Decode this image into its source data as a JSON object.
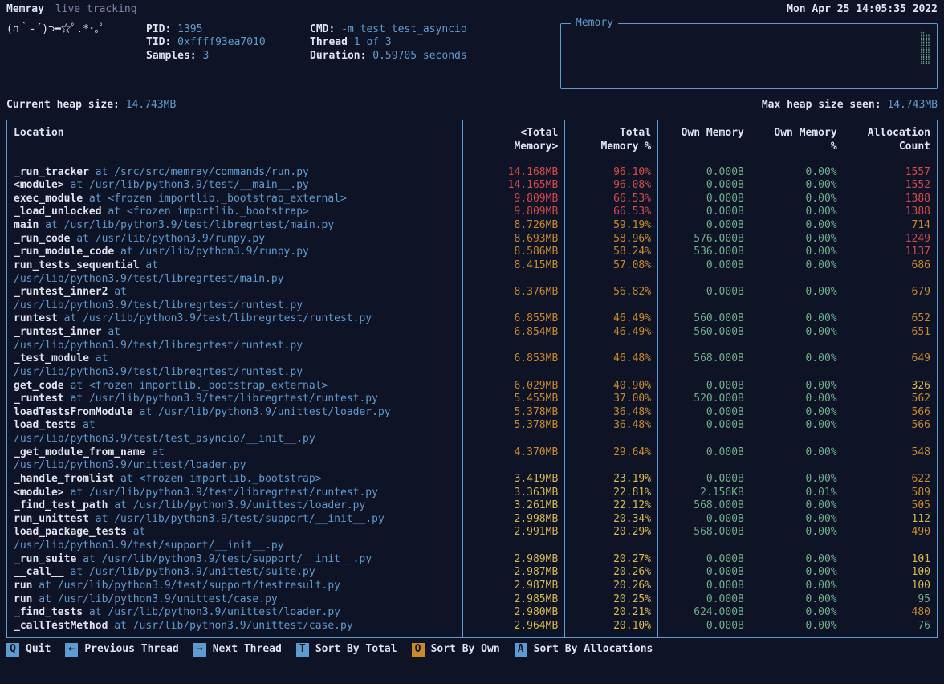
{
  "brand": "Memray",
  "subtitle": "live tracking",
  "timestamp": "Mon Apr 25 14:05:35 2022",
  "emoticon": "(∩｀-´)⊃━☆ﾟ.*･｡ﾟ",
  "process": {
    "pid_label": "PID:",
    "pid": "1395",
    "tid_label": "TID:",
    "tid": "0xffff93ea7010",
    "samples_label": "Samples:",
    "samples": "3",
    "cmd_label": "CMD:",
    "cmd": "-m test test_asyncio",
    "thread_label": "Thread",
    "thread": "1 of 3",
    "duration_label": "Duration:",
    "duration": "0.59705 seconds"
  },
  "memory_box_title": "Memory",
  "memory_spark": "⣦⣀\n⣿⣿\n⣿⣿\n⣿⣿\n⣿⣿",
  "heap": {
    "current_label": "Current heap size:",
    "current_value": "14.743MB",
    "max_label": "Max heap size seen:",
    "max_value": "14.743MB"
  },
  "columns": {
    "location": "Location",
    "total_mem": "<Total\nMemory>",
    "total_pct": "Total\nMemory %",
    "own_mem": "Own Memory",
    "own_pct": "Own Memory\n%",
    "alloc": "Allocation\nCount"
  },
  "colors": {
    "red": "#d34b4e",
    "orange": "#c98b2a",
    "yellow": "#d6b94f",
    "green": "#6fae8d",
    "background": "#0f1326",
    "border": "#5e9bd0",
    "text": "#e0e2ef"
  },
  "rows": [
    {
      "fn": "_run_tracker",
      "path": "/src/src/memray/commands/run.py",
      "tm": "14.168MB",
      "tp": "96.10%",
      "om": "0.000B",
      "op": "0.00%",
      "ac": "1557",
      "c_tm": "red",
      "c_tp": "red",
      "c_om": "green",
      "c_op": "green",
      "c_ac": "red"
    },
    {
      "fn": "<module>",
      "path": "/usr/lib/python3.9/test/__main__.py",
      "tm": "14.165MB",
      "tp": "96.08%",
      "om": "0.000B",
      "op": "0.00%",
      "ac": "1552",
      "c_tm": "red",
      "c_tp": "red",
      "c_om": "green",
      "c_op": "green",
      "c_ac": "red"
    },
    {
      "fn": "exec_module",
      "path": "<frozen importlib._bootstrap_external>",
      "tm": "9.809MB",
      "tp": "66.53%",
      "om": "0.000B",
      "op": "0.00%",
      "ac": "1388",
      "c_tm": "red",
      "c_tp": "red",
      "c_om": "green",
      "c_op": "green",
      "c_ac": "red"
    },
    {
      "fn": "_load_unlocked",
      "path": "<frozen importlib._bootstrap>",
      "tm": "9.809MB",
      "tp": "66.53%",
      "om": "0.000B",
      "op": "0.00%",
      "ac": "1388",
      "c_tm": "red",
      "c_tp": "red",
      "c_om": "green",
      "c_op": "green",
      "c_ac": "red"
    },
    {
      "fn": "main",
      "path": "/usr/lib/python3.9/test/libregrtest/main.py",
      "tm": "8.726MB",
      "tp": "59.19%",
      "om": "0.000B",
      "op": "0.00%",
      "ac": "714",
      "c_tm": "orange",
      "c_tp": "orange",
      "c_om": "green",
      "c_op": "green",
      "c_ac": "orange"
    },
    {
      "fn": "_run_code",
      "path": "/usr/lib/python3.9/runpy.py",
      "tm": "8.693MB",
      "tp": "58.96%",
      "om": "576.000B",
      "op": "0.00%",
      "ac": "1249",
      "c_tm": "orange",
      "c_tp": "orange",
      "c_om": "green",
      "c_op": "green",
      "c_ac": "red"
    },
    {
      "fn": "_run_module_code",
      "path": "/usr/lib/python3.9/runpy.py",
      "tm": "8.586MB",
      "tp": "58.24%",
      "om": "536.000B",
      "op": "0.00%",
      "ac": "1137",
      "c_tm": "orange",
      "c_tp": "orange",
      "c_om": "green",
      "c_op": "green",
      "c_ac": "red"
    },
    {
      "fn": "run_tests_sequential",
      "path": "/usr/lib/python3.9/test/libregrtest/main.py",
      "tm": "8.415MB",
      "tp": "57.08%",
      "om": "0.000B",
      "op": "0.00%",
      "ac": "686",
      "c_tm": "orange",
      "c_tp": "orange",
      "c_om": "green",
      "c_op": "green",
      "c_ac": "orange",
      "wrap": true
    },
    {
      "fn": "_runtest_inner2",
      "path": "/usr/lib/python3.9/test/libregrtest/runtest.py",
      "tm": "8.376MB",
      "tp": "56.82%",
      "om": "0.000B",
      "op": "0.00%",
      "ac": "679",
      "c_tm": "orange",
      "c_tp": "orange",
      "c_om": "green",
      "c_op": "green",
      "c_ac": "orange",
      "wrap": true
    },
    {
      "fn": "runtest",
      "path": "/usr/lib/python3.9/test/libregrtest/runtest.py",
      "tm": "6.855MB",
      "tp": "46.49%",
      "om": "560.000B",
      "op": "0.00%",
      "ac": "652",
      "c_tm": "orange",
      "c_tp": "orange",
      "c_om": "green",
      "c_op": "green",
      "c_ac": "orange"
    },
    {
      "fn": "_runtest_inner",
      "path": "/usr/lib/python3.9/test/libregrtest/runtest.py",
      "tm": "6.854MB",
      "tp": "46.49%",
      "om": "560.000B",
      "op": "0.00%",
      "ac": "651",
      "c_tm": "orange",
      "c_tp": "orange",
      "c_om": "green",
      "c_op": "green",
      "c_ac": "orange",
      "wrap": true
    },
    {
      "fn": "_test_module",
      "path": "/usr/lib/python3.9/test/libregrtest/runtest.py",
      "tm": "6.853MB",
      "tp": "46.48%",
      "om": "568.000B",
      "op": "0.00%",
      "ac": "649",
      "c_tm": "orange",
      "c_tp": "orange",
      "c_om": "green",
      "c_op": "green",
      "c_ac": "orange",
      "wrap": true
    },
    {
      "fn": "get_code",
      "path": "<frozen importlib._bootstrap_external>",
      "tm": "6.029MB",
      "tp": "40.90%",
      "om": "0.000B",
      "op": "0.00%",
      "ac": "326",
      "c_tm": "orange",
      "c_tp": "orange",
      "c_om": "green",
      "c_op": "green",
      "c_ac": "yellow"
    },
    {
      "fn": "_runtest",
      "path": "/usr/lib/python3.9/test/libregrtest/runtest.py",
      "tm": "5.455MB",
      "tp": "37.00%",
      "om": "520.000B",
      "op": "0.00%",
      "ac": "562",
      "c_tm": "orange",
      "c_tp": "orange",
      "c_om": "green",
      "c_op": "green",
      "c_ac": "orange"
    },
    {
      "fn": "loadTestsFromModule",
      "path": "/usr/lib/python3.9/unittest/loader.py",
      "tm": "5.378MB",
      "tp": "36.48%",
      "om": "0.000B",
      "op": "0.00%",
      "ac": "566",
      "c_tm": "orange",
      "c_tp": "orange",
      "c_om": "green",
      "c_op": "green",
      "c_ac": "orange"
    },
    {
      "fn": "load_tests",
      "path": "/usr/lib/python3.9/test/test_asyncio/__init__.py",
      "tm": "5.378MB",
      "tp": "36.48%",
      "om": "0.000B",
      "op": "0.00%",
      "ac": "566",
      "c_tm": "orange",
      "c_tp": "orange",
      "c_om": "green",
      "c_op": "green",
      "c_ac": "orange",
      "wrap": true
    },
    {
      "fn": "_get_module_from_name",
      "path": "/usr/lib/python3.9/unittest/loader.py",
      "tm": "4.370MB",
      "tp": "29.64%",
      "om": "0.000B",
      "op": "0.00%",
      "ac": "548",
      "c_tm": "orange",
      "c_tp": "orange",
      "c_om": "green",
      "c_op": "green",
      "c_ac": "orange",
      "wrap": true
    },
    {
      "fn": "_handle_fromlist",
      "path": "<frozen importlib._bootstrap>",
      "tm": "3.419MB",
      "tp": "23.19%",
      "om": "0.000B",
      "op": "0.00%",
      "ac": "622",
      "c_tm": "yellow",
      "c_tp": "yellow",
      "c_om": "green",
      "c_op": "green",
      "c_ac": "orange"
    },
    {
      "fn": "<module>",
      "path": "/usr/lib/python3.9/test/libregrtest/runtest.py",
      "tm": "3.363MB",
      "tp": "22.81%",
      "om": "2.156KB",
      "op": "0.01%",
      "ac": "589",
      "c_tm": "yellow",
      "c_tp": "yellow",
      "c_om": "green",
      "c_op": "green",
      "c_ac": "orange"
    },
    {
      "fn": "_find_test_path",
      "path": "/usr/lib/python3.9/unittest/loader.py",
      "tm": "3.261MB",
      "tp": "22.12%",
      "om": "568.000B",
      "op": "0.00%",
      "ac": "505",
      "c_tm": "yellow",
      "c_tp": "yellow",
      "c_om": "green",
      "c_op": "green",
      "c_ac": "orange"
    },
    {
      "fn": "run_unittest",
      "path": "/usr/lib/python3.9/test/support/__init__.py",
      "tm": "2.998MB",
      "tp": "20.34%",
      "om": "0.000B",
      "op": "0.00%",
      "ac": "112",
      "c_tm": "yellow",
      "c_tp": "yellow",
      "c_om": "green",
      "c_op": "green",
      "c_ac": "yellow"
    },
    {
      "fn": "load_package_tests",
      "path": "/usr/lib/python3.9/test/support/__init__.py",
      "tm": "2.991MB",
      "tp": "20.29%",
      "om": "568.000B",
      "op": "0.00%",
      "ac": "490",
      "c_tm": "yellow",
      "c_tp": "yellow",
      "c_om": "green",
      "c_op": "green",
      "c_ac": "orange",
      "wrap": true
    },
    {
      "fn": "_run_suite",
      "path": "/usr/lib/python3.9/test/support/__init__.py",
      "tm": "2.989MB",
      "tp": "20.27%",
      "om": "0.000B",
      "op": "0.00%",
      "ac": "101",
      "c_tm": "yellow",
      "c_tp": "yellow",
      "c_om": "green",
      "c_op": "green",
      "c_ac": "yellow"
    },
    {
      "fn": "__call__",
      "path": "/usr/lib/python3.9/unittest/suite.py",
      "tm": "2.987MB",
      "tp": "20.26%",
      "om": "0.000B",
      "op": "0.00%",
      "ac": "100",
      "c_tm": "yellow",
      "c_tp": "yellow",
      "c_om": "green",
      "c_op": "green",
      "c_ac": "yellow"
    },
    {
      "fn": "run",
      "path": "/usr/lib/python3.9/test/support/testresult.py",
      "tm": "2.987MB",
      "tp": "20.26%",
      "om": "0.000B",
      "op": "0.00%",
      "ac": "100",
      "c_tm": "yellow",
      "c_tp": "yellow",
      "c_om": "green",
      "c_op": "green",
      "c_ac": "yellow"
    },
    {
      "fn": "run",
      "path": "/usr/lib/python3.9/unittest/case.py",
      "tm": "2.985MB",
      "tp": "20.25%",
      "om": "0.000B",
      "op": "0.00%",
      "ac": "95",
      "c_tm": "yellow",
      "c_tp": "yellow",
      "c_om": "green",
      "c_op": "green",
      "c_ac": "green"
    },
    {
      "fn": "_find_tests",
      "path": "/usr/lib/python3.9/unittest/loader.py",
      "tm": "2.980MB",
      "tp": "20.21%",
      "om": "624.000B",
      "op": "0.00%",
      "ac": "480",
      "c_tm": "yellow",
      "c_tp": "yellow",
      "c_om": "green",
      "c_op": "green",
      "c_ac": "orange"
    },
    {
      "fn": "_callTestMethod",
      "path": "/usr/lib/python3.9/unittest/case.py",
      "tm": "2.964MB",
      "tp": "20.10%",
      "om": "0.000B",
      "op": "0.00%",
      "ac": "76",
      "c_tm": "yellow",
      "c_tp": "yellow",
      "c_om": "green",
      "c_op": "green",
      "c_ac": "green"
    }
  ],
  "footer": [
    {
      "key": "Q",
      "label": "Quit",
      "style": "blue"
    },
    {
      "key": "←",
      "label": "Previous Thread",
      "style": "blue"
    },
    {
      "key": "→",
      "label": "Next Thread",
      "style": "blue"
    },
    {
      "key": "T",
      "label": "Sort By Total",
      "style": "blue"
    },
    {
      "key": "O",
      "label": "Sort By Own",
      "style": "orange"
    },
    {
      "key": "A",
      "label": "Sort By Allocations",
      "style": "blue"
    }
  ],
  "at_word": " at "
}
